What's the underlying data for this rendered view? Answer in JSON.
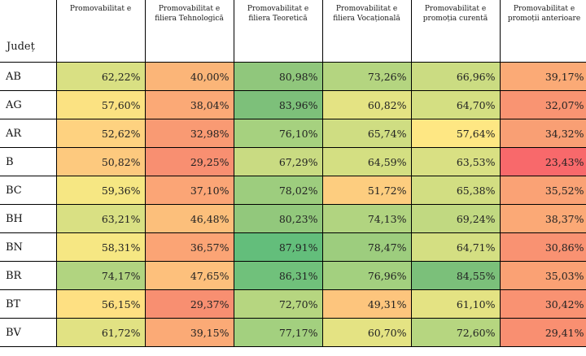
{
  "table": {
    "headers": [
      "Județ",
      "Promovabilitat e",
      "Promovabilitat e filiera Tehnologică",
      "Promovabilitat e filiera Teoretică",
      "Promovabilitat e filiera Vocațională",
      "Promovabilitat e promoția curentă",
      "Promovabilitat e promoții anterioare"
    ],
    "rows": [
      {
        "county": "AB",
        "cells": [
          {
            "v": "62,22%",
            "bg": "#d9e083"
          },
          {
            "v": "40,00%",
            "bg": "#fbb578"
          },
          {
            "v": "80,98%",
            "bg": "#90c77c"
          },
          {
            "v": "73,26%",
            "bg": "#b4d580"
          },
          {
            "v": "66,96%",
            "bg": "#cbdc82"
          },
          {
            "v": "39,17%",
            "bg": "#fbaa76"
          }
        ]
      },
      {
        "county": "AG",
        "cells": [
          {
            "v": "57,60%",
            "bg": "#fbe282"
          },
          {
            "v": "38,04%",
            "bg": "#fba976"
          },
          {
            "v": "83,96%",
            "bg": "#7dc07a"
          },
          {
            "v": "60,82%",
            "bg": "#e4e383"
          },
          {
            "v": "64,70%",
            "bg": "#d4df82"
          },
          {
            "v": "32,07%",
            "bg": "#f99472"
          }
        ]
      },
      {
        "county": "AR",
        "cells": [
          {
            "v": "52,62%",
            "bg": "#fed280"
          },
          {
            "v": "32,98%",
            "bg": "#f99a73"
          },
          {
            "v": "76,10%",
            "bg": "#a6d17f"
          },
          {
            "v": "65,74%",
            "bg": "#cfdd82"
          },
          {
            "v": "57,64%",
            "bg": "#fee783"
          },
          {
            "v": "34,32%",
            "bg": "#f99f74"
          }
        ]
      },
      {
        "county": "B",
        "cells": [
          {
            "v": "50,82%",
            "bg": "#fdc97e"
          },
          {
            "v": "29,25%",
            "bg": "#f88f71"
          },
          {
            "v": "67,29%",
            "bg": "#c9db82"
          },
          {
            "v": "64,59%",
            "bg": "#d4df82"
          },
          {
            "v": "63,53%",
            "bg": "#d9e083"
          },
          {
            "v": "23,43%",
            "bg": "#f8696b"
          }
        ]
      },
      {
        "county": "BC",
        "cells": [
          {
            "v": "59,36%",
            "bg": "#f6e783"
          },
          {
            "v": "37,10%",
            "bg": "#fba576"
          },
          {
            "v": "78,02%",
            "bg": "#9dcd7e"
          },
          {
            "v": "51,72%",
            "bg": "#fdcd7f"
          },
          {
            "v": "65,38%",
            "bg": "#d2de82"
          },
          {
            "v": "35,52%",
            "bg": "#faa275"
          }
        ]
      },
      {
        "county": "BH",
        "cells": [
          {
            "v": "63,21%",
            "bg": "#d9e083"
          },
          {
            "v": "46,48%",
            "bg": "#fcbf7b"
          },
          {
            "v": "80,23%",
            "bg": "#92c87c"
          },
          {
            "v": "74,13%",
            "bg": "#b1d480"
          },
          {
            "v": "69,24%",
            "bg": "#c1d981"
          },
          {
            "v": "38,37%",
            "bg": "#fba976"
          }
        ]
      },
      {
        "county": "BN",
        "cells": [
          {
            "v": "58,31%",
            "bg": "#f6e783"
          },
          {
            "v": "36,57%",
            "bg": "#fba475"
          },
          {
            "v": "87,91%",
            "bg": "#63be7b"
          },
          {
            "v": "78,47%",
            "bg": "#9dcd7e"
          },
          {
            "v": "64,71%",
            "bg": "#d4df82"
          },
          {
            "v": "30,86%",
            "bg": "#f99272"
          }
        ]
      },
      {
        "county": "BR",
        "cells": [
          {
            "v": "74,17%",
            "bg": "#b1d480"
          },
          {
            "v": "47,65%",
            "bg": "#fdc07c"
          },
          {
            "v": "86,31%",
            "bg": "#70c17b"
          },
          {
            "v": "76,96%",
            "bg": "#a3d07f"
          },
          {
            "v": "84,55%",
            "bg": "#7bc07a"
          },
          {
            "v": "35,03%",
            "bg": "#faa174"
          }
        ]
      },
      {
        "county": "BT",
        "cells": [
          {
            "v": "56,15%",
            "bg": "#fee082"
          },
          {
            "v": "29,37%",
            "bg": "#f88f71"
          },
          {
            "v": "72,70%",
            "bg": "#b6d680"
          },
          {
            "v": "49,31%",
            "bg": "#fdc57d"
          },
          {
            "v": "61,10%",
            "bg": "#e4e383"
          },
          {
            "v": "30,42%",
            "bg": "#f99272"
          }
        ]
      },
      {
        "county": "BV",
        "cells": [
          {
            "v": "61,72%",
            "bg": "#e1e283"
          },
          {
            "v": "39,15%",
            "bg": "#fbaa76"
          },
          {
            "v": "77,17%",
            "bg": "#a3d07f"
          },
          {
            "v": "60,70%",
            "bg": "#e4e383"
          },
          {
            "v": "72,60%",
            "bg": "#b6d680"
          },
          {
            "v": "29,41%",
            "bg": "#f98f71"
          }
        ]
      }
    ]
  }
}
